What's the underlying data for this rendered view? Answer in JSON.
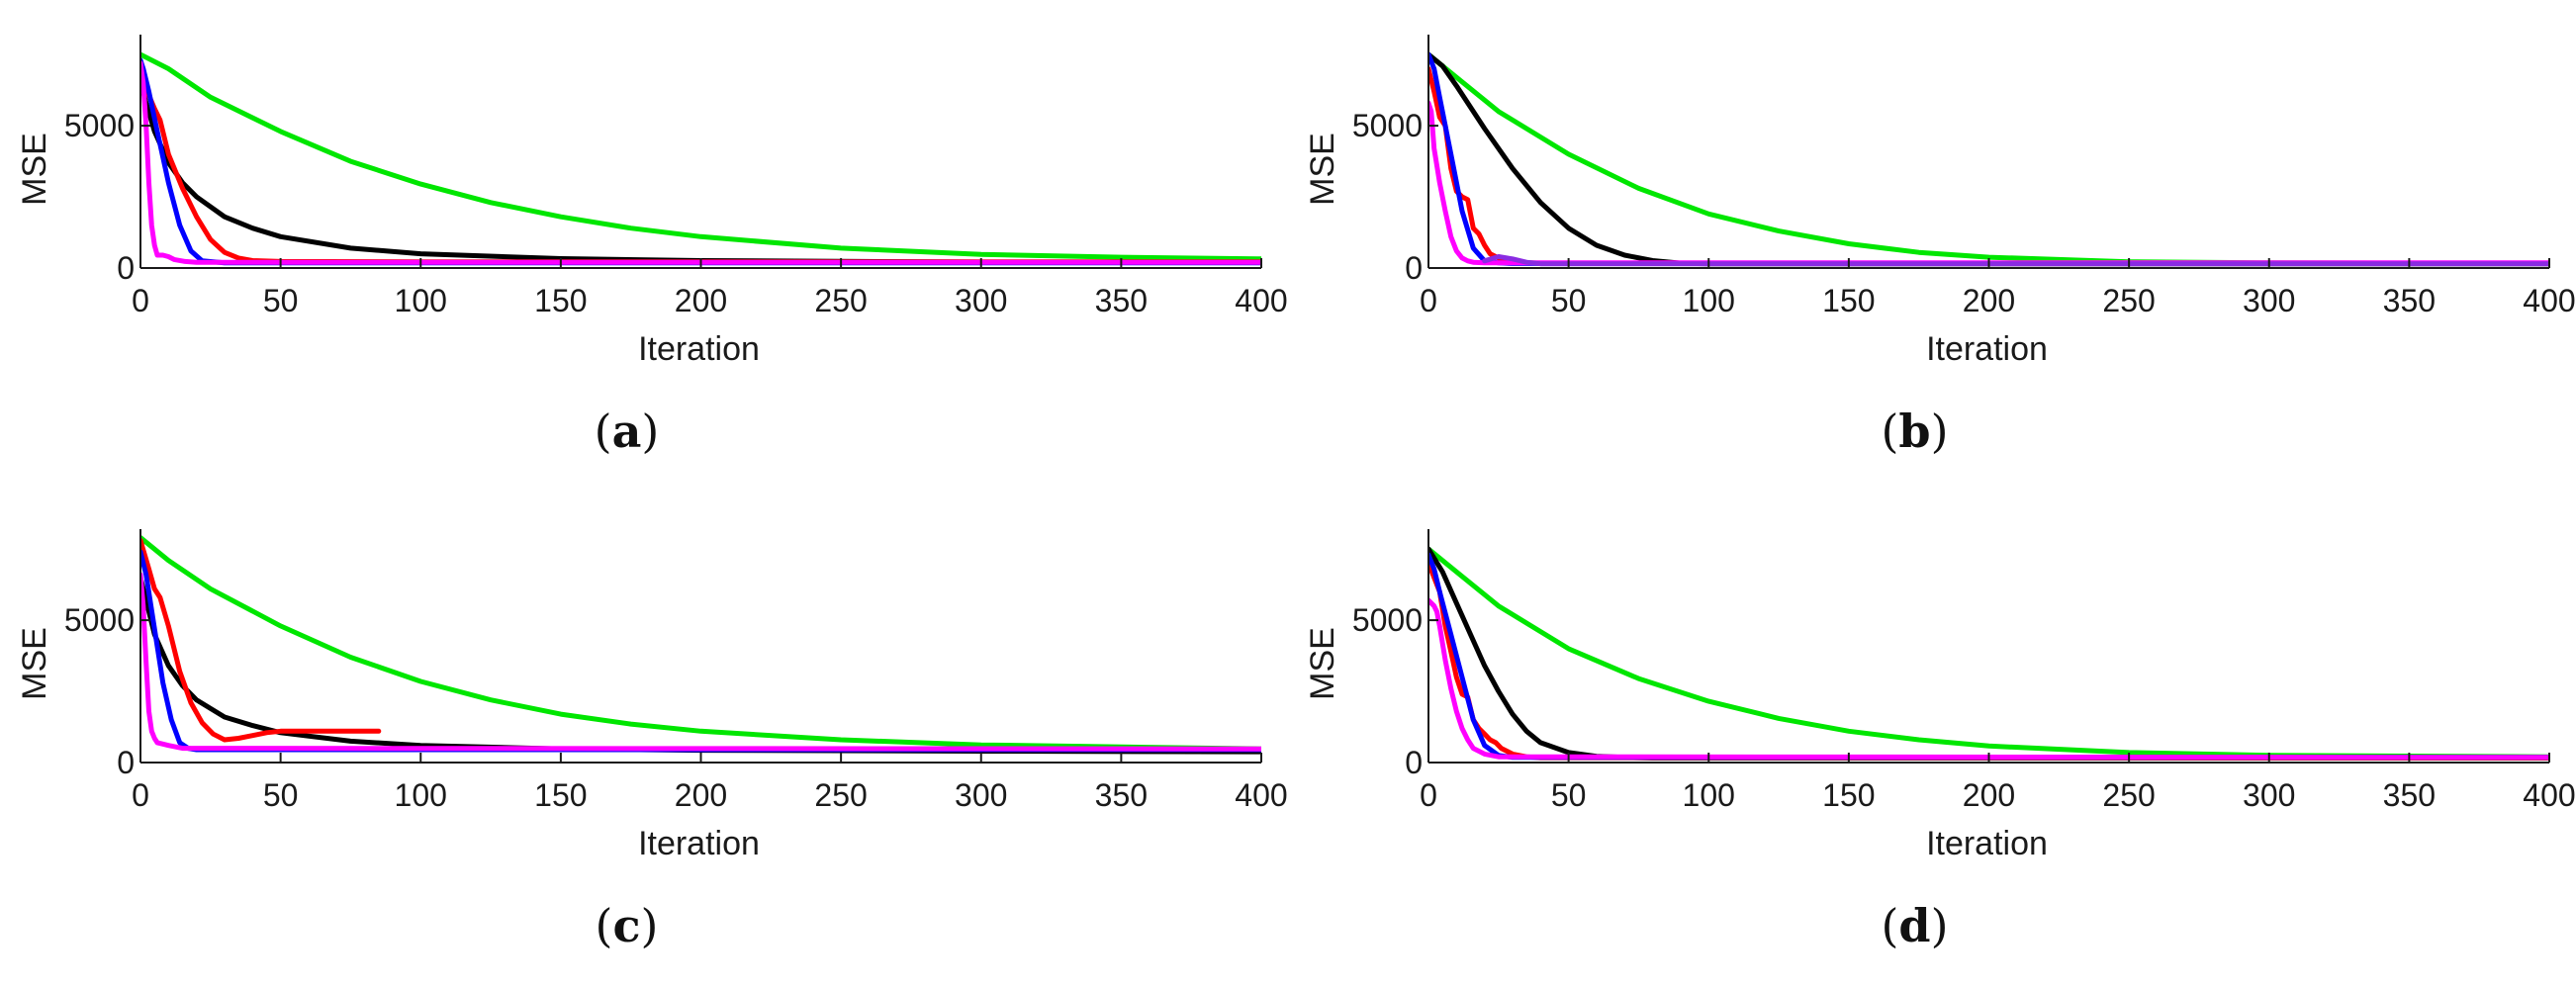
{
  "chart_data": [
    {
      "type": "line",
      "caption": "a",
      "xlabel": "Iteration",
      "ylabel": "MSE",
      "xlim": [
        0,
        400
      ],
      "ylim": [
        0,
        8200
      ],
      "xticks": [
        0,
        50,
        100,
        150,
        200,
        250,
        300,
        350,
        400
      ],
      "yticks": [
        0,
        5000
      ],
      "series": [
        {
          "color": "#00e600",
          "x": [
            0,
            10,
            25,
            50,
            75,
            100,
            125,
            150,
            175,
            200,
            250,
            300,
            350,
            400
          ],
          "y": [
            7500,
            7000,
            6000,
            4800,
            3750,
            2950,
            2300,
            1800,
            1400,
            1100,
            700,
            480,
            380,
            320
          ]
        },
        {
          "color": "#000000",
          "x": [
            0,
            2,
            5,
            10,
            15,
            20,
            30,
            40,
            50,
            75,
            100,
            150,
            200,
            300,
            400
          ],
          "y": [
            6600,
            5800,
            4800,
            3700,
            3000,
            2500,
            1800,
            1400,
            1100,
            700,
            500,
            330,
            260,
            210,
            190
          ]
        },
        {
          "color": "#ff0000",
          "x": [
            0,
            2,
            5,
            7,
            10,
            15,
            20,
            25,
            30,
            35,
            40,
            50,
            100,
            400
          ],
          "y": [
            6800,
            6300,
            5600,
            5200,
            4000,
            2800,
            1800,
            1000,
            550,
            350,
            260,
            230,
            220,
            220
          ]
        },
        {
          "color": "#0000ff",
          "x": [
            0,
            1,
            3,
            6,
            10,
            14,
            18,
            22,
            30,
            400
          ],
          "y": [
            7300,
            7000,
            6200,
            4800,
            3000,
            1500,
            600,
            250,
            180,
            180
          ]
        },
        {
          "color": "#ff00ff",
          "x": [
            0,
            1,
            2,
            3,
            4,
            5,
            6,
            8,
            10,
            12,
            16,
            20,
            400
          ],
          "y": [
            7200,
            6500,
            5000,
            3000,
            1500,
            800,
            450,
            450,
            400,
            300,
            230,
            200,
            200
          ]
        }
      ]
    },
    {
      "type": "line",
      "caption": "b",
      "xlabel": "Iteration",
      "ylabel": "MSE",
      "xlim": [
        0,
        400
      ],
      "ylim": [
        0,
        8200
      ],
      "xticks": [
        0,
        50,
        100,
        150,
        200,
        250,
        300,
        350,
        400
      ],
      "yticks": [
        0,
        5000
      ],
      "series": [
        {
          "color": "#00e600",
          "x": [
            0,
            10,
            25,
            50,
            75,
            100,
            125,
            150,
            175,
            200,
            250,
            300,
            400
          ],
          "y": [
            7500,
            6700,
            5500,
            4000,
            2800,
            1900,
            1300,
            850,
            550,
            380,
            220,
            180,
            160
          ]
        },
        {
          "color": "#000000",
          "x": [
            0,
            5,
            10,
            20,
            30,
            40,
            50,
            60,
            70,
            80,
            90,
            100,
            400
          ],
          "y": [
            7500,
            7100,
            6400,
            4900,
            3500,
            2300,
            1400,
            800,
            450,
            260,
            170,
            150,
            150
          ]
        },
        {
          "color": "#ff0000",
          "x": [
            0,
            2,
            4,
            6,
            8,
            10,
            12,
            14,
            16,
            18,
            20,
            22,
            24,
            26,
            28,
            30,
            40,
            400
          ],
          "y": [
            7000,
            6200,
            5300,
            5000,
            3500,
            2700,
            2500,
            2400,
            1400,
            1200,
            800,
            500,
            400,
            300,
            250,
            200,
            170,
            160
          ]
        },
        {
          "color": "#0000ff",
          "x": [
            0,
            2,
            4,
            8,
            12,
            16,
            20,
            25,
            30,
            400
          ],
          "y": [
            7500,
            7000,
            6000,
            4000,
            2000,
            700,
            250,
            180,
            160,
            160
          ]
        },
        {
          "color": "#ff00ff",
          "x": [
            0,
            1,
            2,
            4,
            6,
            8,
            10,
            12,
            14,
            16,
            20,
            400
          ],
          "y": [
            5800,
            5500,
            4200,
            3000,
            2000,
            1100,
            600,
            350,
            250,
            200,
            180,
            180
          ]
        },
        {
          "color": "#8a2be2",
          "x": [
            20,
            25,
            30,
            35,
            40,
            400
          ],
          "y": [
            250,
            400,
            320,
            200,
            150,
            150
          ]
        }
      ]
    },
    {
      "type": "line",
      "caption": "c",
      "xlabel": "Iteration",
      "ylabel": "MSE",
      "xlim": [
        0,
        400
      ],
      "ylim": [
        0,
        8200
      ],
      "xticks": [
        0,
        50,
        100,
        150,
        200,
        250,
        300,
        350,
        400
      ],
      "yticks": [
        0,
        5000
      ],
      "series": [
        {
          "color": "#00e600",
          "x": [
            0,
            10,
            25,
            50,
            75,
            100,
            125,
            150,
            175,
            200,
            250,
            300,
            400
          ],
          "y": [
            7900,
            7100,
            6100,
            4800,
            3700,
            2850,
            2200,
            1700,
            1350,
            1100,
            800,
            620,
            480
          ]
        },
        {
          "color": "#000000",
          "x": [
            0,
            2,
            5,
            10,
            15,
            20,
            30,
            40,
            50,
            75,
            100,
            150,
            200,
            300,
            400
          ],
          "y": [
            6500,
            5700,
            4500,
            3400,
            2700,
            2200,
            1600,
            1300,
            1050,
            750,
            600,
            480,
            430,
            400,
            380
          ]
        },
        {
          "color": "#ff0000",
          "x": [
            0,
            3,
            5,
            7,
            10,
            14,
            18,
            22,
            26,
            30,
            35,
            40,
            45,
            50,
            55,
            60,
            70,
            85
          ],
          "y": [
            7800,
            6800,
            6100,
            5800,
            4800,
            3200,
            2100,
            1400,
            1000,
            800,
            850,
            950,
            1050,
            1100,
            1100,
            1100,
            1100,
            1100
          ]
        },
        {
          "color": "#0000ff",
          "x": [
            0,
            2,
            5,
            8,
            11,
            14,
            17,
            20,
            400
          ],
          "y": [
            7400,
            6600,
            4700,
            2800,
            1500,
            700,
            500,
            450,
            450
          ]
        },
        {
          "color": "#ff00ff",
          "x": [
            0,
            1,
            2,
            3,
            4,
            5,
            6,
            8,
            10,
            15,
            400
          ],
          "y": [
            6600,
            5500,
            3500,
            1800,
            1100,
            850,
            700,
            650,
            600,
            500,
            480
          ]
        }
      ]
    },
    {
      "type": "line",
      "caption": "d",
      "xlabel": "Iteration",
      "ylabel": "MSE",
      "xlim": [
        0,
        400
      ],
      "ylim": [
        0,
        8200
      ],
      "xticks": [
        0,
        50,
        100,
        150,
        200,
        250,
        300,
        350,
        400
      ],
      "yticks": [
        0,
        5000
      ],
      "series": [
        {
          "color": "#00e600",
          "x": [
            0,
            10,
            25,
            50,
            75,
            100,
            125,
            150,
            175,
            200,
            250,
            300,
            400
          ],
          "y": [
            7500,
            6700,
            5500,
            4000,
            2950,
            2150,
            1550,
            1100,
            800,
            580,
            350,
            250,
            200
          ]
        },
        {
          "color": "#000000",
          "x": [
            0,
            5,
            10,
            15,
            20,
            25,
            30,
            35,
            40,
            50,
            60,
            70,
            80,
            400
          ],
          "y": [
            7500,
            6700,
            5600,
            4500,
            3400,
            2500,
            1700,
            1100,
            700,
            350,
            220,
            180,
            160,
            160
          ]
        },
        {
          "color": "#ff0000",
          "x": [
            0,
            2,
            4,
            6,
            8,
            10,
            12,
            14,
            16,
            18,
            20,
            22,
            24,
            26,
            28,
            30,
            35,
            40,
            400
          ],
          "y": [
            7000,
            6500,
            6000,
            4800,
            3900,
            3000,
            2400,
            2300,
            1500,
            1200,
            1000,
            800,
            700,
            500,
            400,
            300,
            200,
            170,
            160
          ]
        },
        {
          "color": "#0000ff",
          "x": [
            0,
            2,
            4,
            8,
            12,
            16,
            20,
            25,
            30,
            400
          ],
          "y": [
            7300,
            6800,
            6000,
            4500,
            3000,
            1500,
            600,
            250,
            180,
            180
          ]
        },
        {
          "color": "#ff00ff",
          "x": [
            0,
            1,
            2,
            3,
            4,
            6,
            8,
            10,
            12,
            14,
            16,
            20,
            25,
            400
          ],
          "y": [
            5700,
            5600,
            5500,
            5300,
            4800,
            3600,
            2600,
            1800,
            1200,
            800,
            500,
            300,
            200,
            180
          ]
        }
      ]
    }
  ]
}
